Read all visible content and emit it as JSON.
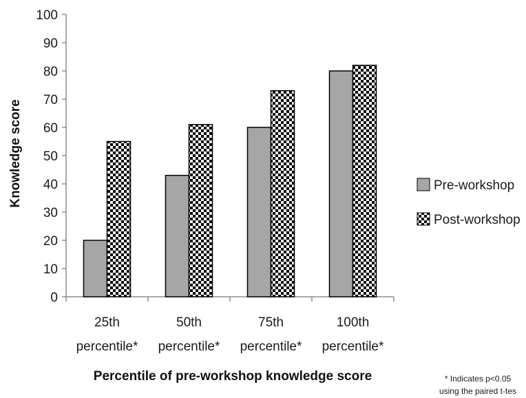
{
  "chart_data": {
    "type": "bar",
    "categories": [
      [
        "25th",
        "percentile*"
      ],
      [
        "50th",
        "percentile*"
      ],
      [
        "75th",
        "percentile*"
      ],
      [
        "100th",
        "percentile*"
      ]
    ],
    "series": [
      {
        "name": "Pre-workshop",
        "values": [
          20,
          43,
          60,
          80
        ],
        "fill": "#a6a6a6",
        "pattern": "solid"
      },
      {
        "name": "Post-workshop",
        "values": [
          55,
          61,
          73,
          82
        ],
        "fill": "#000000",
        "pattern": "checker"
      }
    ],
    "xlabel": "Percentile of pre-workshop knowledge score",
    "ylabel": "Knowledge score",
    "ylim": [
      0,
      100
    ],
    "yticks": [
      0,
      10,
      20,
      30,
      40,
      50,
      60,
      70,
      80,
      90,
      100
    ],
    "legend_position": "right",
    "grid": false,
    "footnote": [
      "* Indicates p<0.05",
      "using the paired t-tes"
    ]
  }
}
